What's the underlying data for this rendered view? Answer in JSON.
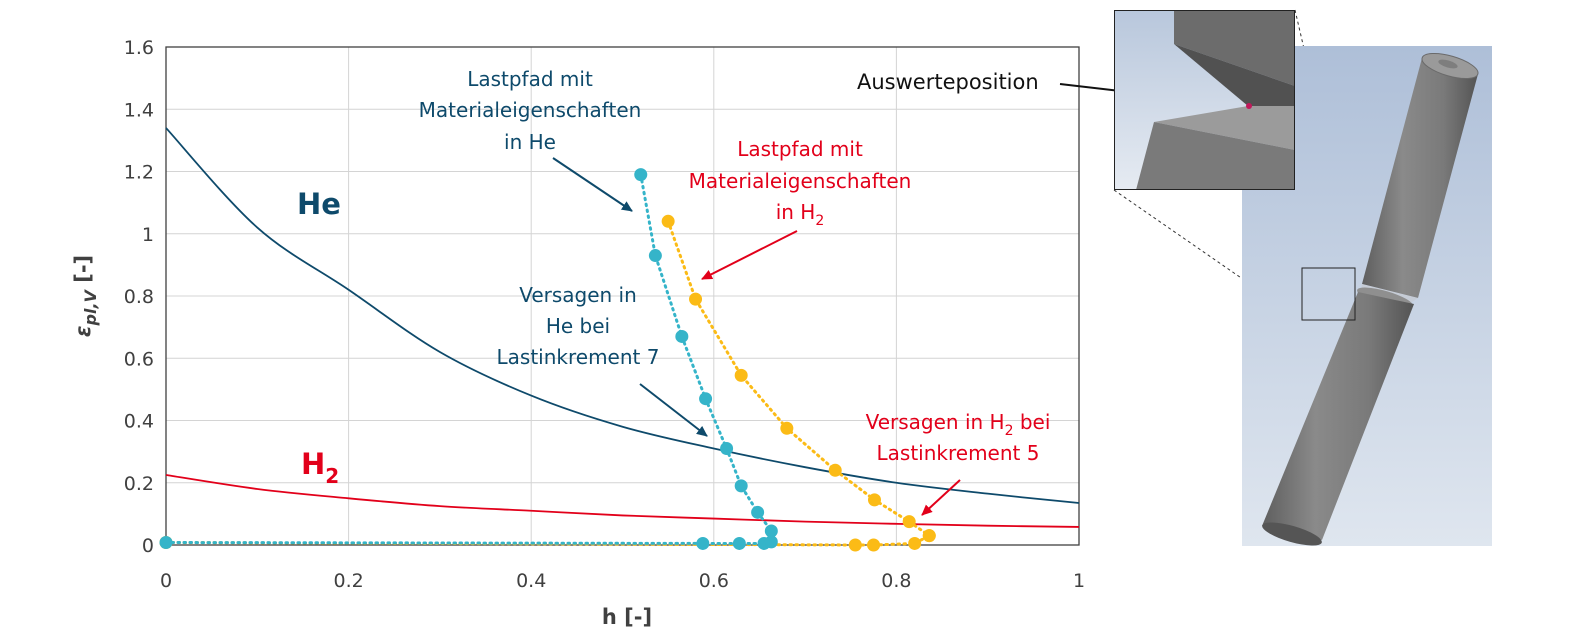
{
  "chart_data": {
    "type": "line",
    "xlabel": "h [-]",
    "ylabel_main": "ε",
    "ylabel_sub": "pl,V",
    "ylabel_unit": " [-]",
    "xlim": [
      0,
      1
    ],
    "ylim": [
      0,
      1.6
    ],
    "xticks": [
      "0",
      "0.2",
      "0.4",
      "0.6",
      "0.8",
      "1"
    ],
    "yticks": [
      "0",
      "0.2",
      "0.4",
      "0.6",
      "0.8",
      "1",
      "1.2",
      "1.4",
      "1.6"
    ],
    "grid": true,
    "colors": {
      "he_curve": "#0e4a6b",
      "h2_curve": "#e2001a",
      "he_path": "#35b4c9",
      "h2_path": "#fbbb16"
    },
    "series": [
      {
        "name": "He",
        "kind": "curve",
        "x": [
          0,
          0.1,
          0.2,
          0.3,
          0.4,
          0.5,
          0.6,
          0.7,
          0.8,
          0.9,
          1.0
        ],
        "y": [
          1.34,
          1.02,
          0.82,
          0.62,
          0.48,
          0.38,
          0.31,
          0.25,
          0.2,
          0.165,
          0.135
        ]
      },
      {
        "name": "H₂",
        "kind": "curve",
        "x": [
          0,
          0.1,
          0.2,
          0.3,
          0.4,
          0.5,
          0.6,
          0.7,
          0.8,
          0.9,
          1.0
        ],
        "y": [
          0.225,
          0.18,
          0.15,
          0.125,
          0.11,
          0.095,
          0.085,
          0.075,
          0.068,
          0.062,
          0.058
        ]
      },
      {
        "name": "",
        "kind": "path-he",
        "x": [
          0.52,
          0.536,
          0.565,
          0.591,
          0.614,
          0.63,
          0.648,
          0.663
        ],
        "y": [
          1.19,
          0.93,
          0.67,
          0.47,
          0.31,
          0.19,
          0.105,
          0.045
        ]
      },
      {
        "name": "",
        "kind": "path-h2",
        "x": [
          0.55,
          0.58,
          0.63,
          0.68,
          0.733,
          0.776,
          0.814,
          0.836
        ],
        "y": [
          1.04,
          0.79,
          0.545,
          0.375,
          0.24,
          0.145,
          0.075,
          0.03
        ]
      },
      {
        "name": "",
        "kind": "baseline-he",
        "x": [
          0,
          0.588,
          0.628,
          0.655,
          0.663
        ],
        "y": [
          0.008,
          0.005,
          0.005,
          0.005,
          0.01
        ]
      },
      {
        "name": "",
        "kind": "baseline-h2",
        "x": [
          0,
          0.755,
          0.775,
          0.82,
          0.836
        ],
        "y": [
          0.008,
          0.0,
          0.0,
          0.005,
          0.03
        ]
      }
    ],
    "annotations": {
      "he_big": "He",
      "h2_big_main": "H",
      "h2_big_sub": "2",
      "lastpfad_he": [
        "Lastpfad mit",
        "Materialeigenschaften",
        "in He"
      ],
      "lastpfad_h2_l1": "Lastpfad mit",
      "lastpfad_h2_l2": "Materialeigenschaften",
      "lastpfad_h2_l3_main": "in H",
      "lastpfad_h2_l3_sub": "2",
      "versagen_he": [
        "Versagen in",
        "He bei",
        "Lastinkrement 7"
      ],
      "versagen_h2_l1_a": "Versagen in H",
      "versagen_h2_l1_sub": "2",
      "versagen_h2_l1_b": " bei",
      "versagen_h2_l2": "Lastinkrement 5"
    }
  },
  "figure": {
    "inset_label": "Auswerteposition",
    "marker_color": "#c2185b"
  }
}
